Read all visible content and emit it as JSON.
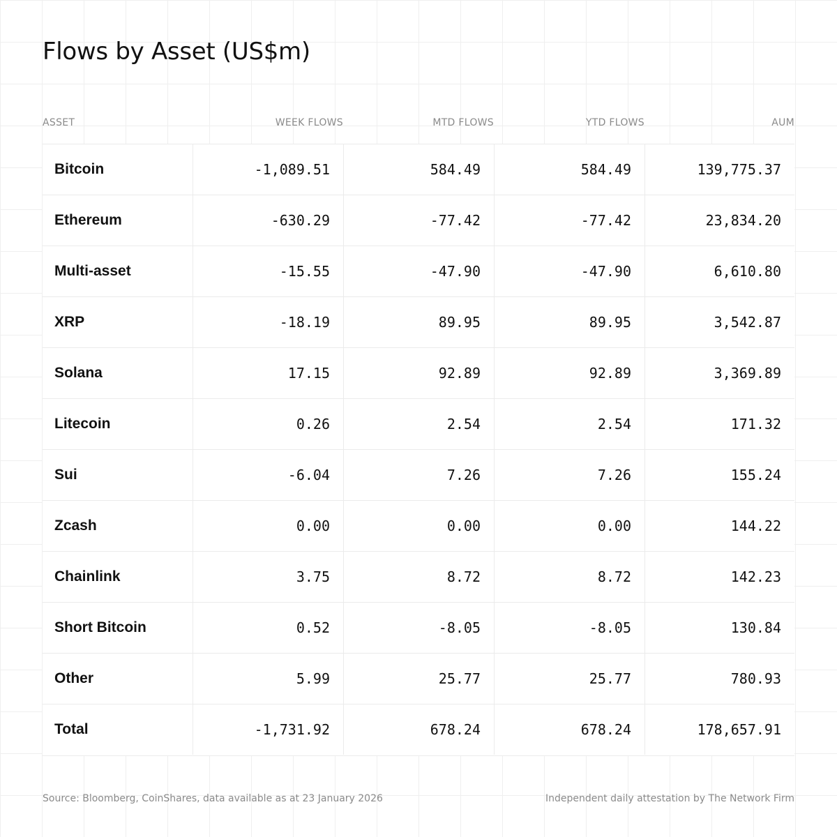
{
  "chart_data": {
    "type": "table",
    "title": "Flows by Asset (US$m)",
    "columns": [
      "ASSET",
      "WEEK FLOWS",
      "MTD FLOWS",
      "YTD FLOWS",
      "AUM"
    ],
    "rows": [
      {
        "asset": "Bitcoin",
        "week": "-1,089.51",
        "mtd": "584.49",
        "ytd": "584.49",
        "aum": "139,775.37"
      },
      {
        "asset": "Ethereum",
        "week": "-630.29",
        "mtd": "-77.42",
        "ytd": "-77.42",
        "aum": "23,834.20"
      },
      {
        "asset": "Multi-asset",
        "week": "-15.55",
        "mtd": "-47.90",
        "ytd": "-47.90",
        "aum": "6,610.80"
      },
      {
        "asset": "XRP",
        "week": "-18.19",
        "mtd": "89.95",
        "ytd": "89.95",
        "aum": "3,542.87"
      },
      {
        "asset": "Solana",
        "week": "17.15",
        "mtd": "92.89",
        "ytd": "92.89",
        "aum": "3,369.89"
      },
      {
        "asset": "Litecoin",
        "week": "0.26",
        "mtd": "2.54",
        "ytd": "2.54",
        "aum": "171.32"
      },
      {
        "asset": "Sui",
        "week": "-6.04",
        "mtd": "7.26",
        "ytd": "7.26",
        "aum": "155.24"
      },
      {
        "asset": "Zcash",
        "week": "0.00",
        "mtd": "0.00",
        "ytd": "0.00",
        "aum": "144.22"
      },
      {
        "asset": "Chainlink",
        "week": "3.75",
        "mtd": "8.72",
        "ytd": "8.72",
        "aum": "142.23"
      },
      {
        "asset": "Short Bitcoin",
        "week": "0.52",
        "mtd": "-8.05",
        "ytd": "-8.05",
        "aum": "130.84"
      },
      {
        "asset": "Other",
        "week": "5.99",
        "mtd": "25.77",
        "ytd": "25.77",
        "aum": "780.93"
      },
      {
        "asset": "Total",
        "week": "-1,731.92",
        "mtd": "678.24",
        "ytd": "678.24",
        "aum": "178,657.91"
      }
    ],
    "source": "Source: Bloomberg, CoinShares, data available as at 23 January 2026",
    "attestation": "Independent daily attestation by The Network Firm"
  }
}
